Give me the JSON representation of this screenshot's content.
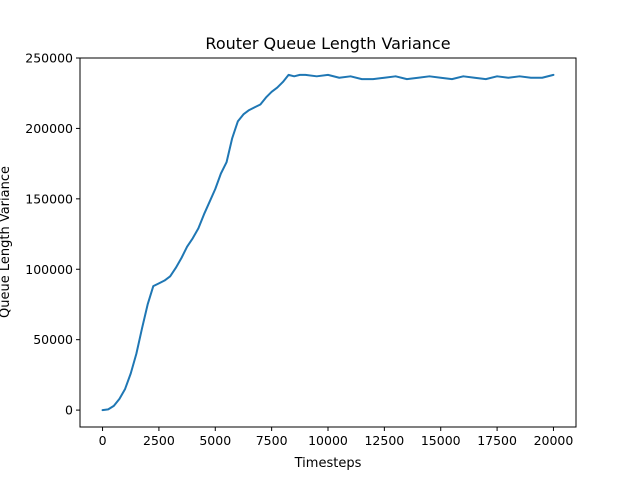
{
  "chart_data": {
    "type": "line",
    "title": "Router Queue Length Variance",
    "xlabel": "Timesteps",
    "ylabel": "Queue Length Variance",
    "xlim": [
      -1000,
      21000
    ],
    "ylim": [
      -12000,
      250000
    ],
    "x_ticks": [
      0,
      2500,
      5000,
      7500,
      10000,
      12500,
      15000,
      17500,
      20000
    ],
    "y_ticks": [
      0,
      50000,
      100000,
      150000,
      200000,
      250000
    ],
    "grid": false,
    "legend": "none",
    "series": [
      {
        "color": "#1f77b4",
        "x": [
          0,
          250,
          500,
          750,
          1000,
          1250,
          1500,
          1750,
          2000,
          2250,
          2500,
          2750,
          3000,
          3250,
          3500,
          3750,
          4000,
          4250,
          4500,
          4750,
          5000,
          5250,
          5500,
          5750,
          6000,
          6250,
          6500,
          6750,
          7000,
          7250,
          7500,
          7750,
          8000,
          8250,
          8500,
          8750,
          9000,
          9500,
          10000,
          10500,
          11000,
          11500,
          12000,
          12500,
          13000,
          13500,
          14000,
          14500,
          15000,
          15500,
          16000,
          16500,
          17000,
          17500,
          18000,
          18500,
          19000,
          19500,
          20000
        ],
        "y": [
          0,
          500,
          3000,
          8000,
          15000,
          26000,
          40000,
          58000,
          75000,
          88000,
          90000,
          92000,
          95000,
          101000,
          108000,
          116000,
          122000,
          129000,
          139000,
          148000,
          157000,
          168000,
          176000,
          193000,
          205000,
          210000,
          213000,
          215000,
          217000,
          222000,
          226000,
          229000,
          233000,
          238000,
          237000,
          238000,
          238000,
          237000,
          238000,
          236000,
          237000,
          235000,
          235000,
          236000,
          237000,
          235000,
          236000,
          237000,
          236000,
          235000,
          237000,
          236000,
          235000,
          237000,
          236000,
          237000,
          236000,
          236000,
          238000
        ]
      }
    ]
  }
}
